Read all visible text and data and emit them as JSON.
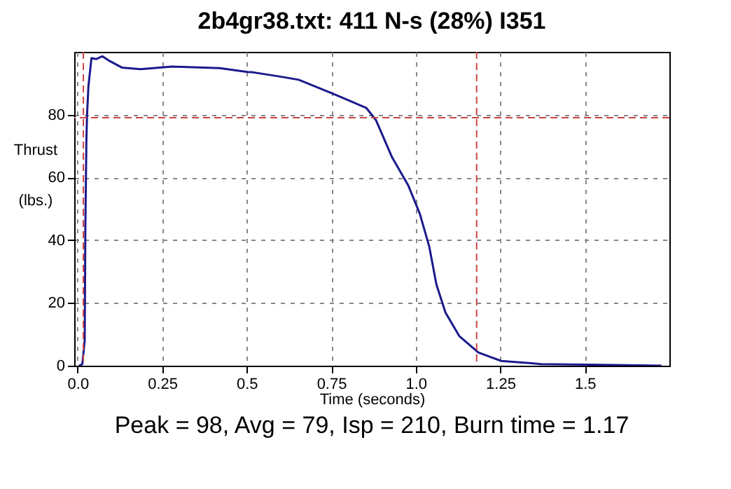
{
  "chart_data": {
    "type": "line",
    "title": "2b4gr38.txt:  411 N-s (28%) I351",
    "xlabel": "Time (seconds)",
    "ylabel": "Thrust (lbs.)",
    "annotations": [
      "Peak = 98, Avg = 79, Isp = 210, Burn time = 1.17"
    ],
    "x": [
      0.004,
      0.014,
      0.021,
      0.023,
      0.026,
      0.028,
      0.032,
      0.041,
      0.055,
      0.073,
      0.096,
      0.131,
      0.186,
      0.28,
      0.42,
      0.503,
      0.517,
      0.6,
      0.654,
      0.757,
      0.854,
      0.882,
      0.93,
      0.978,
      1.012,
      1.04,
      1.061,
      1.088,
      1.129,
      1.185,
      1.253,
      1.343,
      1.37,
      1.55,
      1.727
    ],
    "series": [
      {
        "color": "#1a1a8c",
        "values": [
          0,
          0.5,
          8,
          45,
          72,
          80,
          89,
          98,
          97.7,
          98.6,
          97,
          95,
          94.5,
          95.3,
          94.8,
          93.6,
          93.5,
          92.1,
          91.1,
          86.6,
          82.1,
          78.3,
          66.4,
          57.4,
          48.4,
          37.9,
          25.9,
          16.9,
          9.4,
          4.2,
          1.5,
          0.8,
          0.5,
          0.3,
          0
        ]
      }
    ],
    "xlim": [
      -0.01,
      1.75
    ],
    "ylim": [
      0,
      100
    ],
    "xticks": [
      {
        "value": 0,
        "label": "0.0"
      },
      0.25,
      0.5,
      0.75,
      {
        "value": 1,
        "label": "1.0"
      },
      1.25,
      1.5
    ],
    "yticks": [
      0,
      20,
      40,
      60,
      80
    ],
    "ref_lines": [
      {
        "axis": "y",
        "value": 79,
        "color": "#cc4444",
        "line_style": "dashed"
      },
      {
        "axis": "x",
        "value": 0.017,
        "color": "#cc4444",
        "line_style": "dashed"
      },
      {
        "axis": "x",
        "value": 1.18,
        "color": "#cc4444",
        "line_style": "dashed"
      }
    ],
    "grid": true,
    "marker": "none",
    "line_style": "solid"
  }
}
